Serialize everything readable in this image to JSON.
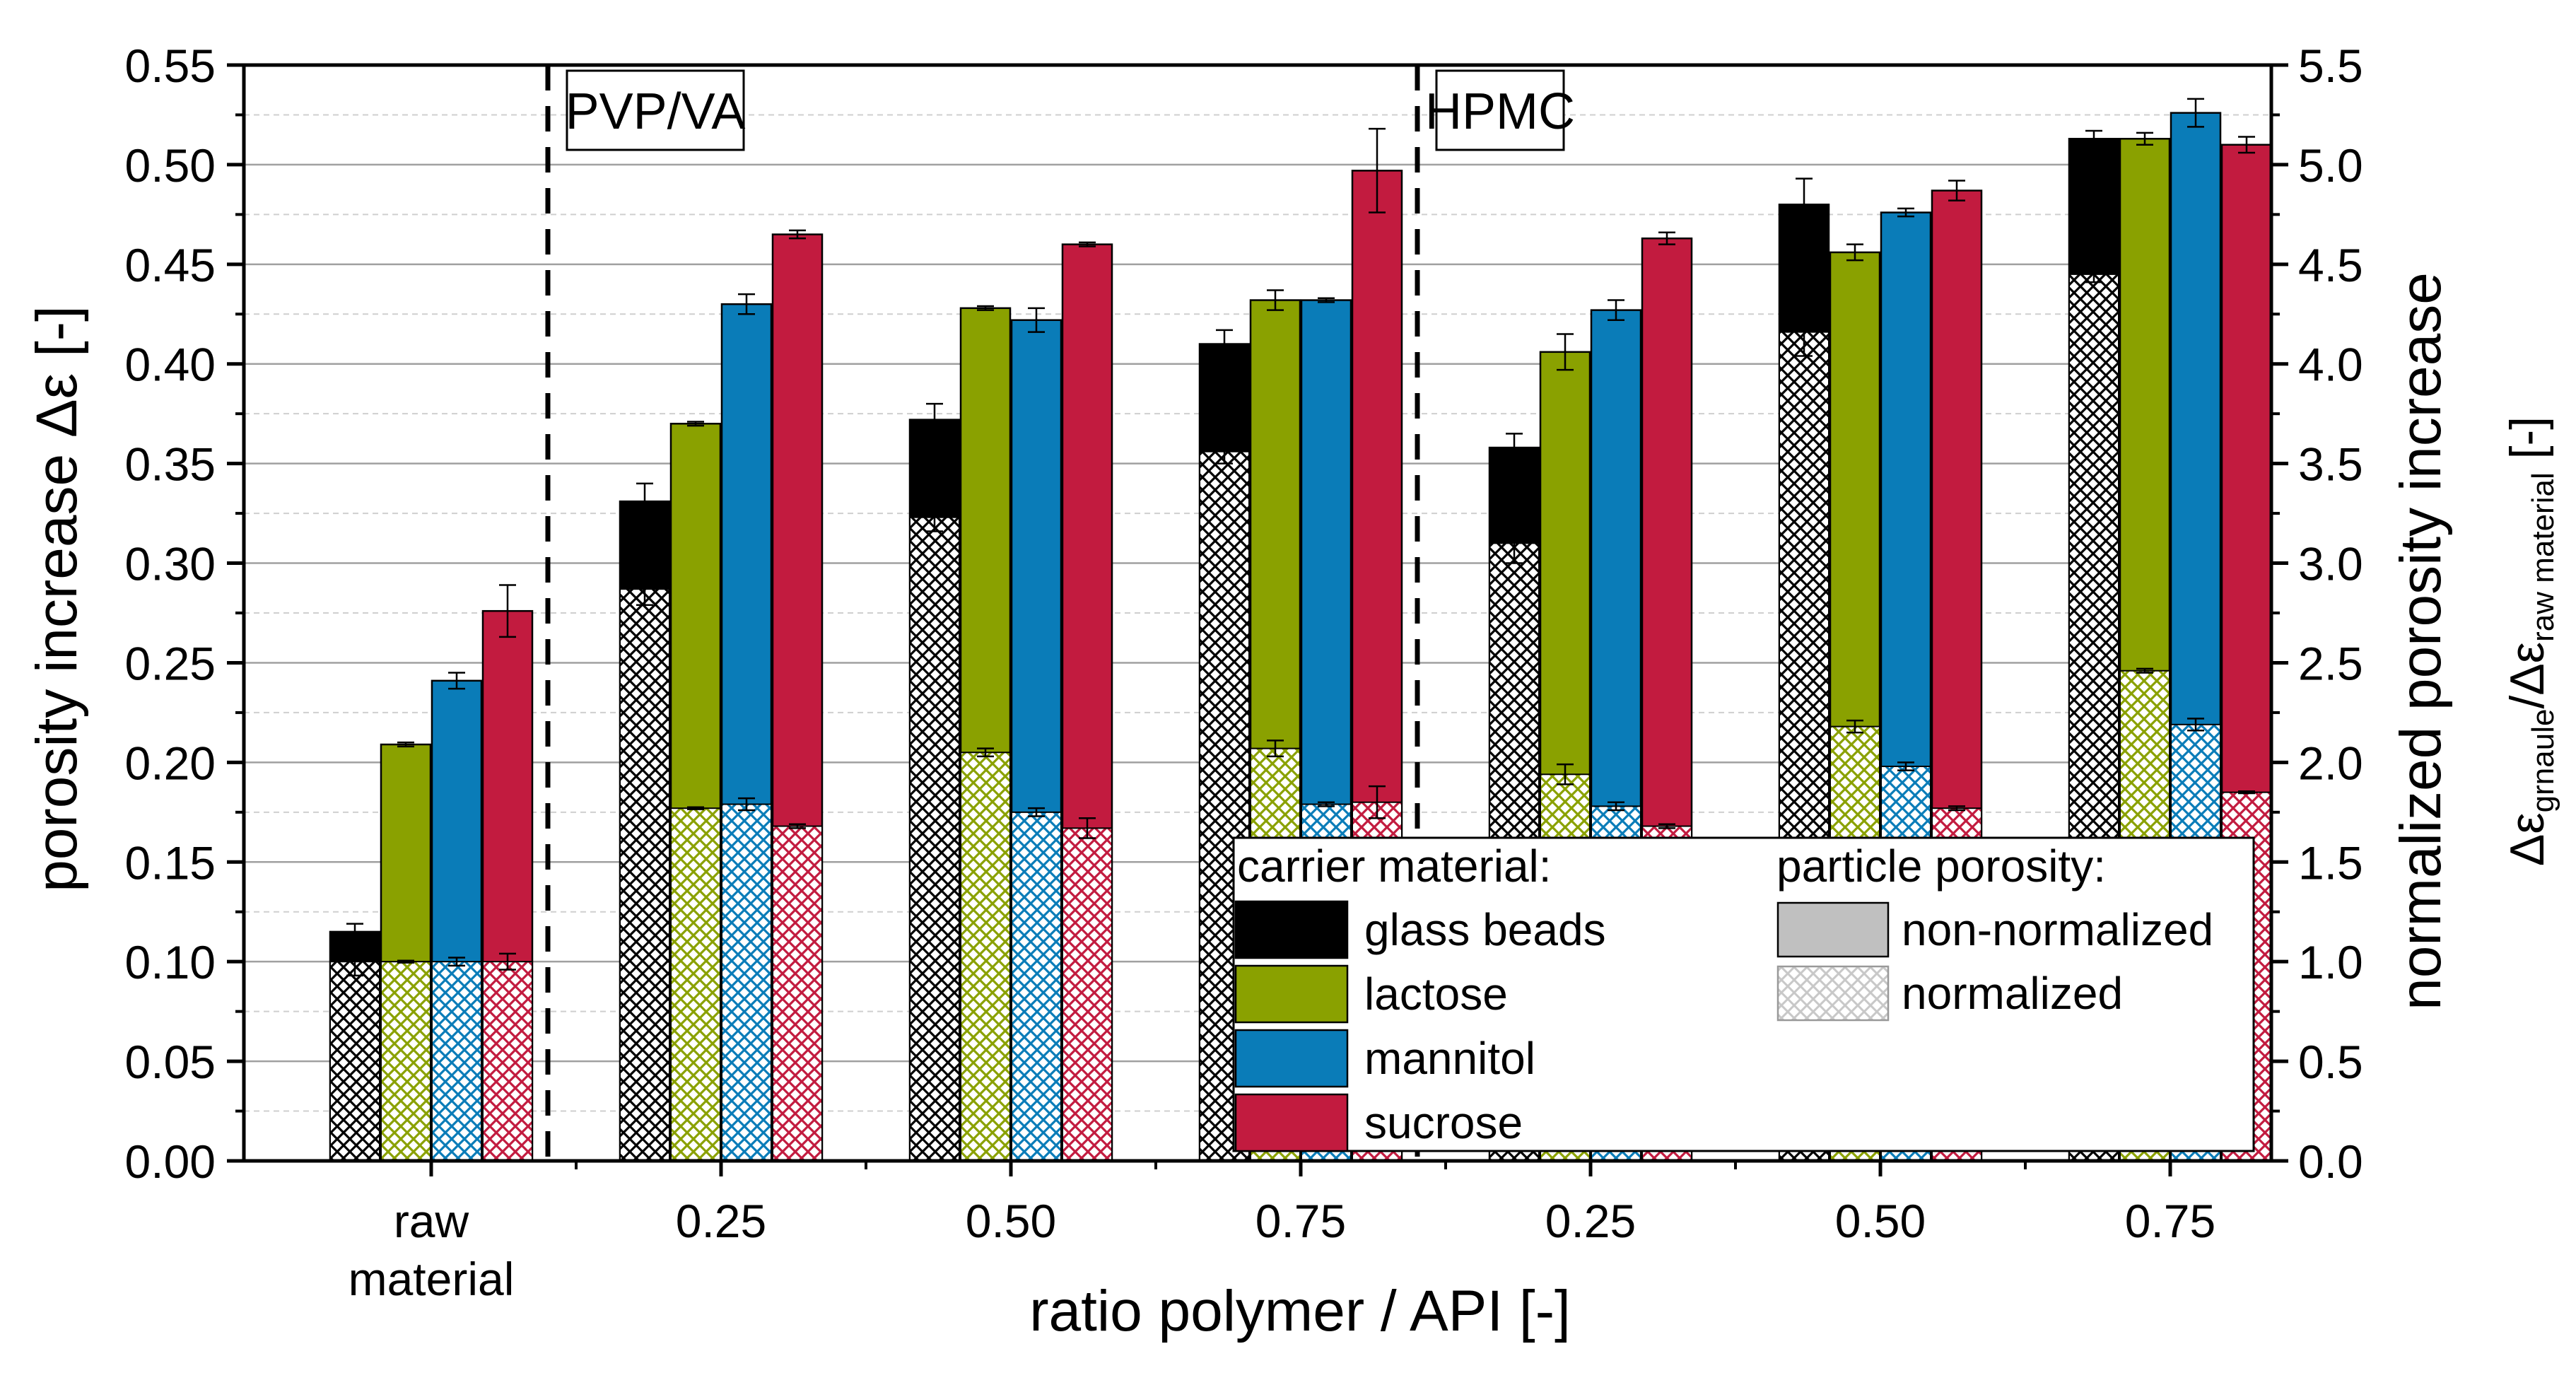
{
  "chart_data": {
    "type": "bar",
    "title": "",
    "xlabel": "ratio polymer / API [-]",
    "ylabel": "porosity increase Δε [-]",
    "y2label_main": "normalized porosity increase",
    "y2label_sub": "Δεgrnaule/Δεraw material [-]",
    "y2label_sub_parts": {
      "delta1": "Δε",
      "sub1": "grnaule",
      "slash": "/Δε",
      "sub2": "raw material",
      "tail": " [-]"
    },
    "ylim": [
      0,
      0.55
    ],
    "y2lim": [
      0,
      5.5
    ],
    "yticks": [
      "0.00",
      "0.05",
      "0.10",
      "0.15",
      "0.20",
      "0.25",
      "0.30",
      "0.35",
      "0.40",
      "0.45",
      "0.50",
      "0.55"
    ],
    "y2ticks": [
      "0.0",
      "0.5",
      "1.0",
      "1.5",
      "2.0",
      "2.5",
      "3.0",
      "3.5",
      "4.0",
      "4.5",
      "5.0",
      "5.5"
    ],
    "categories": [
      {
        "label": "raw",
        "label2": "material"
      },
      {
        "label": "0.25",
        "label2": ""
      },
      {
        "label": "0.50",
        "label2": ""
      },
      {
        "label": "0.75",
        "label2": ""
      },
      {
        "label": "0.25",
        "label2": ""
      },
      {
        "label": "0.50",
        "label2": ""
      },
      {
        "label": "0.75",
        "label2": ""
      }
    ],
    "group_annotations": [
      {
        "text": "PVP/VA",
        "after_category": 0
      },
      {
        "text": "HPMC",
        "after_category": 3
      }
    ],
    "series": [
      {
        "name": "glass beads",
        "color": "#000000",
        "values": [
          0.115,
          0.331,
          0.372,
          0.41,
          0.358,
          0.48,
          0.513
        ],
        "errors": [
          0.004,
          0.009,
          0.008,
          0.007,
          0.007,
          0.013,
          0.004
        ],
        "normalized": [
          1.0,
          2.87,
          3.23,
          3.56,
          3.1,
          4.16,
          4.45
        ],
        "normalized_errors": [
          0.07,
          0.08,
          0.07,
          0.06,
          0.1,
          0.12,
          0.04
        ]
      },
      {
        "name": "lactose",
        "color": "#8AA100",
        "values": [
          0.209,
          0.37,
          0.428,
          0.432,
          0.406,
          0.456,
          0.513
        ],
        "errors": [
          0.001,
          0.001,
          0.001,
          0.005,
          0.009,
          0.004,
          0.003
        ],
        "normalized": [
          1.0,
          1.77,
          2.05,
          2.07,
          1.94,
          2.18,
          2.46
        ],
        "normalized_errors": [
          0.005,
          0.005,
          0.02,
          0.04,
          0.05,
          0.03,
          0.01
        ]
      },
      {
        "name": "mannitol",
        "color": "#0A7CB8",
        "values": [
          0.241,
          0.43,
          0.422,
          0.432,
          0.427,
          0.476,
          0.526
        ],
        "errors": [
          0.004,
          0.005,
          0.006,
          0.001,
          0.005,
          0.002,
          0.007
        ],
        "normalized": [
          1.0,
          1.79,
          1.75,
          1.79,
          1.78,
          1.98,
          2.19
        ],
        "normalized_errors": [
          0.02,
          0.03,
          0.02,
          0.01,
          0.02,
          0.02,
          0.03
        ]
      },
      {
        "name": "sucrose",
        "color": "#C21B3F",
        "values": [
          0.276,
          0.465,
          0.46,
          0.497,
          0.463,
          0.487,
          0.51
        ],
        "errors": [
          0.013,
          0.002,
          0.001,
          0.021,
          0.003,
          0.005,
          0.004
        ],
        "normalized": [
          1.0,
          1.68,
          1.67,
          1.8,
          1.68,
          1.77,
          1.85
        ],
        "normalized_errors": [
          0.04,
          0.01,
          0.05,
          0.08,
          0.01,
          0.01,
          0.005
        ]
      }
    ],
    "legend": {
      "position": "bottom-right",
      "carrier_title": "carrier material:",
      "porosity_title": "particle porosity:",
      "porosity_items": [
        "non-normalized",
        "normalized"
      ],
      "non_normalized_color": "#C0C0C0"
    },
    "grid": true
  }
}
